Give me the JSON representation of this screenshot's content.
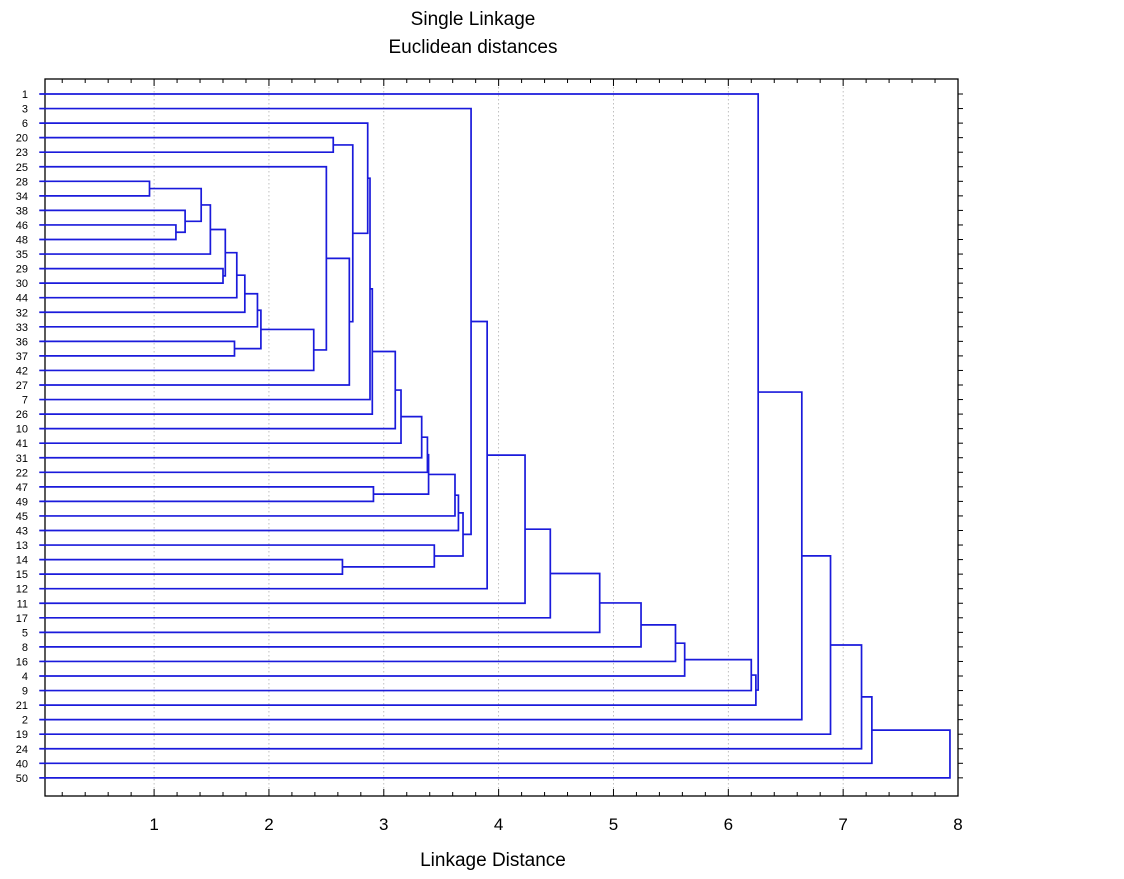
{
  "chart_data": {
    "type": "dendrogram",
    "title": [
      "Single Linkage",
      "Euclidean distances"
    ],
    "xlabel": "Linkage Distance",
    "xlim": [
      0.05,
      8
    ],
    "xticks": [
      1,
      2,
      3,
      4,
      5,
      6,
      7,
      8
    ],
    "grid": "x",
    "line_color": "#1a1adb",
    "leaf_order": [
      "1",
      "3",
      "6",
      "20",
      "23",
      "25",
      "28",
      "34",
      "38",
      "46",
      "48",
      "35",
      "29",
      "30",
      "44",
      "32",
      "33",
      "36",
      "37",
      "42",
      "27",
      "7",
      "26",
      "10",
      "41",
      "31",
      "22",
      "47",
      "49",
      "45",
      "43",
      "13",
      "14",
      "15",
      "12",
      "11",
      "17",
      "5",
      "8",
      "16",
      "4",
      "9",
      "21",
      "2",
      "19",
      "24",
      "40",
      "50"
    ],
    "merges": [
      {
        "a": "28",
        "b": "34",
        "height": 0.96
      },
      {
        "a": "46",
        "b": "48",
        "height": 1.19
      },
      {
        "a": "38",
        "b": "46+48",
        "height": 1.27
      },
      {
        "a": "28+34",
        "b": "38+46+48",
        "height": 1.41
      },
      {
        "a": "28..48",
        "b": "35",
        "height": 1.49
      },
      {
        "a": "29",
        "b": "30",
        "height": 1.6
      },
      {
        "a": "28..35",
        "b": "29+30",
        "height": 1.62
      },
      {
        "a": "28..30",
        "b": "44",
        "height": 1.72
      },
      {
        "a": "28..44",
        "b": "32",
        "height": 1.79
      },
      {
        "a": "36",
        "b": "37",
        "height": 1.7
      },
      {
        "a": "28..32",
        "b": "33",
        "height": 1.9
      },
      {
        "a": "28..33",
        "b": "36+37",
        "height": 1.93
      },
      {
        "a": "28..37",
        "b": "42",
        "height": 2.39
      },
      {
        "a": "25",
        "b": "28..42",
        "height": 2.5
      },
      {
        "a": "20",
        "b": "23",
        "height": 2.56
      },
      {
        "a": "25..42",
        "b": "27",
        "height": 2.7
      },
      {
        "a": "20+23",
        "b": "25..27",
        "height": 2.73
      },
      {
        "a": "6",
        "b": "20..27",
        "height": 2.86
      },
      {
        "a": "6..27",
        "b": "7",
        "height": 2.88
      },
      {
        "a": "6..7",
        "b": "26",
        "height": 2.9
      },
      {
        "a": "6..26",
        "b": "10",
        "height": 3.1
      },
      {
        "a": "6..10",
        "b": "41",
        "height": 3.15
      },
      {
        "a": "6..41",
        "b": "31",
        "height": 3.33
      },
      {
        "a": "6..31",
        "b": "22",
        "height": 3.38
      },
      {
        "a": "47",
        "b": "49",
        "height": 2.91
      },
      {
        "a": "6..22",
        "b": "47+49",
        "height": 3.39
      },
      {
        "a": "6..49",
        "b": "45",
        "height": 3.62
      },
      {
        "a": "6..45",
        "b": "43",
        "height": 3.65
      },
      {
        "a": "14",
        "b": "15",
        "height": 2.64
      },
      {
        "a": "13",
        "b": "14+15",
        "height": 3.44
      },
      {
        "a": "6..43",
        "b": "13..15",
        "height": 3.69
      },
      {
        "a": "3",
        "b": "6..15",
        "height": 3.76
      },
      {
        "a": "3..15",
        "b": "12",
        "height": 3.9
      },
      {
        "a": "3..12",
        "b": "11",
        "height": 4.23
      },
      {
        "a": "3..11",
        "b": "17",
        "height": 4.45
      },
      {
        "a": "3..17",
        "b": "5",
        "height": 4.88
      },
      {
        "a": "3..5",
        "b": "8",
        "height": 5.24
      },
      {
        "a": "3..8",
        "b": "16",
        "height": 5.54
      },
      {
        "a": "3..16",
        "b": "4",
        "height": 5.62
      },
      {
        "a": "3..4",
        "b": "9",
        "height": 6.2
      },
      {
        "a": "3..9",
        "b": "21",
        "height": 6.24
      },
      {
        "a": "1",
        "b": "3..21",
        "height": 6.26
      },
      {
        "a": "1..21",
        "b": "2",
        "height": 6.64
      },
      {
        "a": "1..2",
        "b": "19",
        "height": 6.89
      },
      {
        "a": "1..19",
        "b": "24",
        "height": 7.16
      },
      {
        "a": "1..24",
        "b": "40",
        "height": 7.25
      },
      {
        "a": "1..40",
        "b": "50",
        "height": 7.93
      }
    ]
  }
}
